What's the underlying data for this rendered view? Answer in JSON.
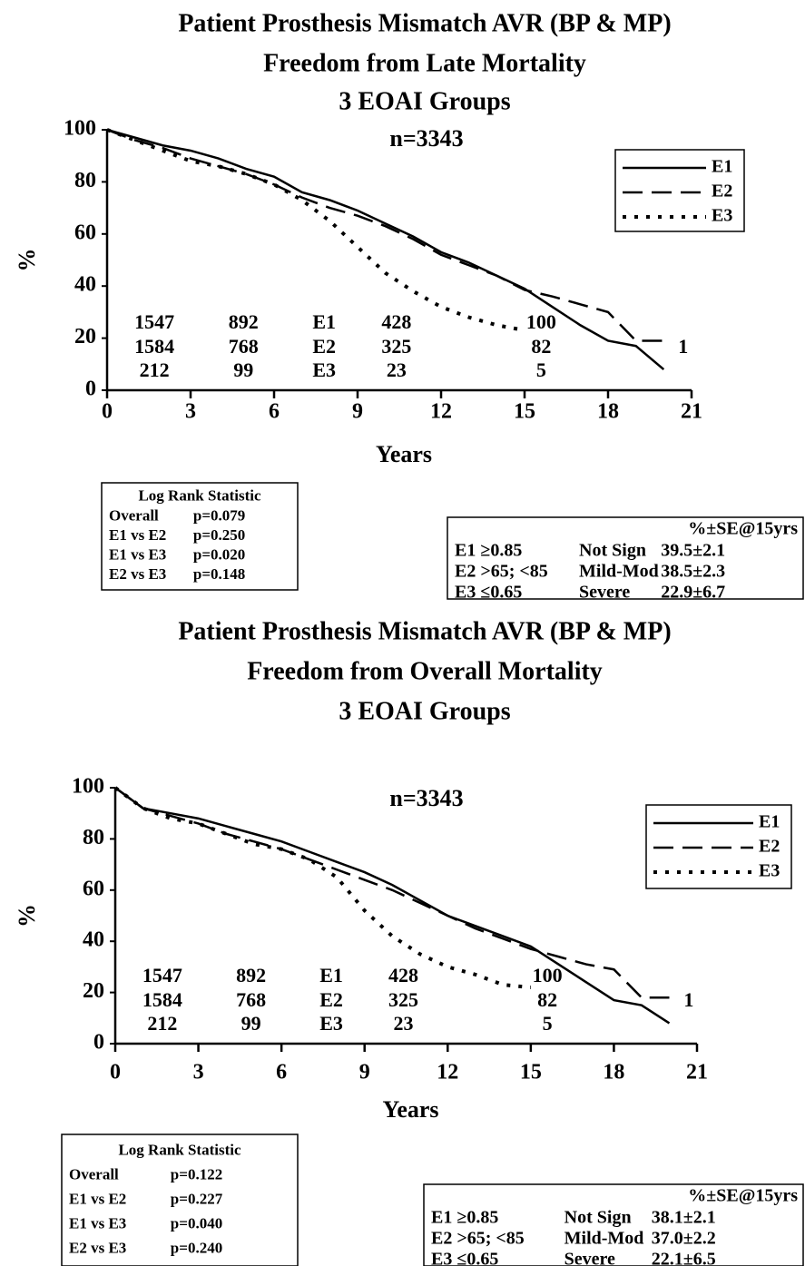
{
  "chart_data": [
    {
      "type": "line",
      "title": [
        "Patient Prosthesis Mismatch AVR (BP & MP)",
        "Freedom from Late Mortality",
        "3 EOAI Groups"
      ],
      "annotation": "n=3343",
      "ylabel": "%",
      "xlabel": "Years",
      "x": [
        0,
        1,
        2,
        3,
        4,
        5,
        6,
        7,
        8,
        9,
        10,
        11,
        12,
        13,
        14,
        15,
        16,
        17,
        18,
        19,
        20
      ],
      "series": [
        {
          "name": "E1",
          "color": "#000000",
          "line_style": "solid",
          "values": [
            100,
            97,
            94,
            92,
            89,
            85,
            82,
            76,
            73,
            69,
            64,
            59,
            53,
            49,
            44,
            39,
            32,
            25,
            19,
            17,
            8
          ]
        },
        {
          "name": "E2",
          "color": "#000000",
          "line_style": "dashed",
          "values": [
            100,
            96,
            93,
            89,
            86,
            83,
            79,
            74,
            70,
            67,
            63,
            58,
            52,
            48,
            44,
            38.5,
            36,
            33,
            30,
            19,
            19
          ]
        },
        {
          "name": "E3",
          "color": "#000000",
          "line_style": "dotted",
          "values": [
            100,
            96,
            92,
            88,
            86,
            83,
            79,
            73,
            65,
            55,
            45,
            38,
            32,
            28,
            25,
            23,
            null,
            null,
            null,
            null,
            null
          ]
        }
      ],
      "xlim": [
        0,
        21
      ],
      "xticks": [
        0,
        3,
        6,
        9,
        12,
        15,
        18,
        21
      ],
      "ylim": [
        0,
        100
      ],
      "yticks": [
        0,
        20,
        40,
        60,
        80,
        100
      ],
      "legend": "upper right",
      "at_risk": {
        "labels": [
          "E1",
          "E2",
          "E3"
        ],
        "columns": [
          [
            "1547",
            "1584",
            "212"
          ],
          [
            "892",
            "768",
            "99"
          ],
          [
            "428",
            "325",
            "23"
          ],
          [
            "100",
            "82",
            "5"
          ]
        ],
        "end_label": "1"
      },
      "log_rank": {
        "title": "Log Rank Statistic",
        "rows": [
          [
            "Overall",
            "p=0.079"
          ],
          [
            "E1 vs E2",
            "p=0.250"
          ],
          [
            "E1 vs E3",
            "p=0.020"
          ],
          [
            "E2 vs E3",
            "p=0.148"
          ]
        ]
      },
      "se_table": {
        "header": "%±SE@15yrs",
        "rows": [
          [
            "E1 ≥0.85",
            "Not Sign",
            "39.5±2.1"
          ],
          [
            "E2 >65; <85",
            "Mild-Mod",
            "38.5±2.3"
          ],
          [
            "E3 ≤0.65",
            "Severe",
            "22.9±6.7"
          ]
        ]
      }
    },
    {
      "type": "line",
      "title": [
        "Patient Prosthesis Mismatch AVR (BP & MP)",
        "Freedom from Overall Mortality",
        "3 EOAI Groups"
      ],
      "annotation": "n=3343",
      "ylabel": "%",
      "xlabel": "Years",
      "x": [
        0,
        1,
        2,
        3,
        4,
        5,
        6,
        7,
        8,
        9,
        10,
        11,
        12,
        13,
        14,
        15,
        16,
        17,
        18,
        19,
        20
      ],
      "series": [
        {
          "name": "E1",
          "color": "#000000",
          "line_style": "solid",
          "values": [
            100,
            92,
            90,
            88,
            85,
            82,
            79,
            75,
            71,
            67,
            62,
            56,
            50,
            46,
            42,
            38,
            31,
            24,
            17,
            15,
            8
          ]
        },
        {
          "name": "E2",
          "color": "#000000",
          "line_style": "dashed",
          "values": [
            100,
            92,
            89,
            86,
            82,
            79,
            76,
            72,
            68,
            64,
            60,
            55,
            50,
            45,
            41,
            37,
            34,
            31,
            29,
            18,
            18
          ]
        },
        {
          "name": "E3",
          "color": "#000000",
          "line_style": "dotted",
          "values": [
            100,
            92,
            88,
            86,
            82,
            78,
            76,
            72,
            65,
            52,
            42,
            35,
            30,
            27,
            23,
            22,
            null,
            null,
            null,
            null,
            null
          ]
        }
      ],
      "xlim": [
        0,
        21
      ],
      "xticks": [
        0,
        3,
        6,
        9,
        12,
        15,
        18,
        21
      ],
      "ylim": [
        0,
        100
      ],
      "yticks": [
        0,
        20,
        40,
        60,
        80,
        100
      ],
      "legend": "upper right",
      "at_risk": {
        "labels": [
          "E1",
          "E2",
          "E3"
        ],
        "columns": [
          [
            "1547",
            "1584",
            "212"
          ],
          [
            "892",
            "768",
            "99"
          ],
          [
            "428",
            "325",
            "23"
          ],
          [
            "100",
            "82",
            "5"
          ]
        ],
        "end_label": "1"
      },
      "log_rank": {
        "title": "Log Rank Statistic",
        "rows": [
          [
            "Overall",
            "p=0.122"
          ],
          [
            "E1 vs E2",
            "p=0.227"
          ],
          [
            "E1 vs E3",
            "p=0.040"
          ],
          [
            "E2 vs E3",
            "p=0.240"
          ]
        ]
      },
      "se_table": {
        "header": "%±SE@15yrs",
        "rows": [
          [
            "E1 ≥0.85",
            "Not Sign",
            "38.1±2.1"
          ],
          [
            "E2 >65; <85",
            "Mild-Mod",
            "37.0±2.2"
          ],
          [
            "E3 ≤0.65",
            "Severe",
            "22.1±6.5"
          ]
        ]
      }
    }
  ]
}
